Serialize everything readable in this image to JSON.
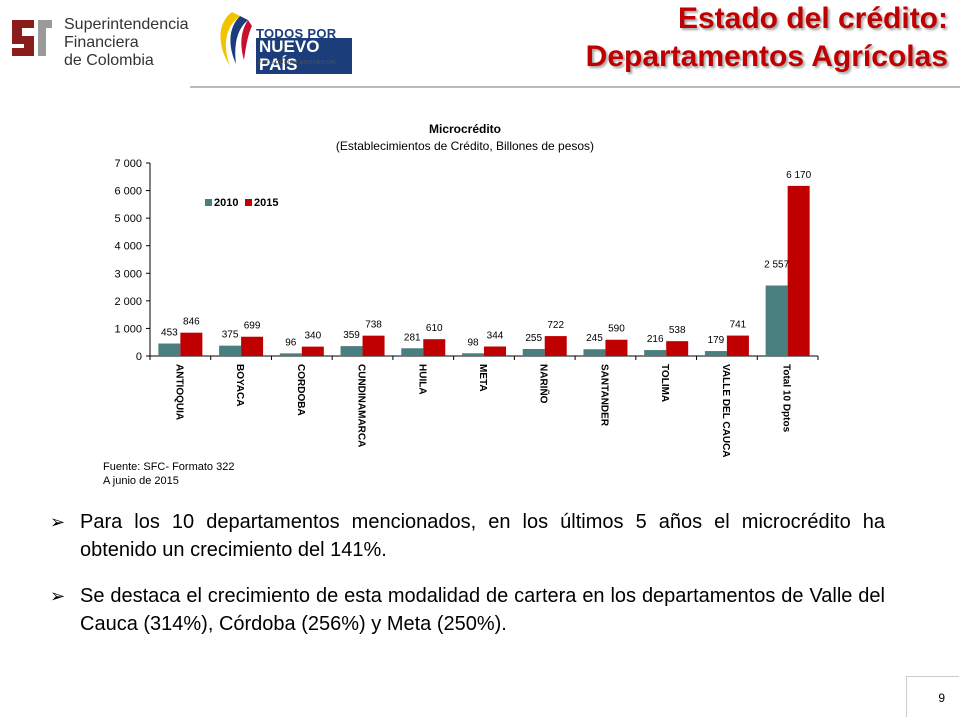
{
  "header": {
    "org_lines": [
      "Superintendencia",
      "Financiera",
      "de Colombia"
    ],
    "gov_line1": "TODOS POR UN",
    "gov_line2": "NUEVO PAÍS",
    "gov_line3": "PAZ   EQUIDAD   EDUCACIÓN",
    "title_line1": "Estado del crédito:",
    "title_line2": "Departamentos Agrícolas"
  },
  "chart_data": {
    "type": "bar",
    "title": "Microcrédito",
    "subtitle": "(Establecimientos de Crédito, Billones de pesos)",
    "categories": [
      "ANTIOQUIA",
      "BOYACA",
      "CORDOBA",
      "CUNDINAMARCA",
      "HUILA",
      "META",
      "NARIÑO",
      "SANTANDER",
      "TOLIMA",
      "VALLE DEL CAUCA",
      "Total 10 Dptos"
    ],
    "series": [
      {
        "name": "2010",
        "values": [
          453,
          375,
          96,
          359,
          281,
          98,
          255,
          245,
          216,
          179,
          2557
        ],
        "labels": [
          "453",
          "375",
          "96",
          "359",
          "281",
          "98",
          "255",
          "245",
          "216",
          "179",
          "2 557"
        ],
        "color": "#4a7f7f"
      },
      {
        "name": "2015",
        "values": [
          846,
          699,
          340,
          738,
          610,
          344,
          722,
          590,
          538,
          741,
          6170
        ],
        "labels": [
          "846",
          "699",
          "340",
          "738",
          "610",
          "344",
          "722",
          "590",
          "538",
          "741",
          "6 170"
        ],
        "color": "#c00000"
      }
    ],
    "ylim": [
      0,
      7000
    ],
    "yticks": [
      "0",
      "1 000",
      "2 000",
      "3 000",
      "4 000",
      "5 000",
      "6 000",
      "7 000"
    ],
    "legend_position": "top-left",
    "grid": false,
    "source_lines": [
      "Fuente: SFC- Formato 322",
      "A junio de 2015"
    ]
  },
  "bullets": [
    "Para los 10 departamentos mencionados, en los últimos 5 años el microcrédito ha obtenido un crecimiento del 141%.",
    "Se destaca el crecimiento de esta modalidad de cartera en los departamentos de Valle del Cauca (314%), Córdoba (256%) y Meta (250%)."
  ],
  "bullet_marker": "➢",
  "page_number": "9"
}
